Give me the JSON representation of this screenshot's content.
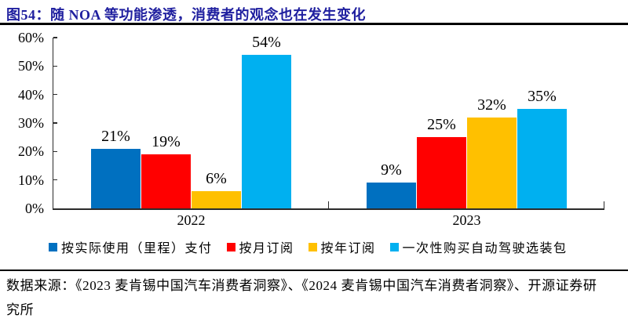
{
  "chart_data": {
    "type": "bar",
    "title": "图54：随 NOA 等功能渗透，消费者的观念也在发生变化",
    "categories": [
      "2022",
      "2023"
    ],
    "series": [
      {
        "name": "按实际使用（里程）支付",
        "color": "#0070C0",
        "values": [
          21,
          9
        ]
      },
      {
        "name": "按月订阅",
        "color": "#FF0000",
        "values": [
          19,
          25
        ]
      },
      {
        "name": "按年订阅",
        "color": "#FFC000",
        "values": [
          6,
          32
        ]
      },
      {
        "name": "一次性购买自动驾驶选装包",
        "color": "#00B0F0",
        "values": [
          54,
          35
        ]
      }
    ],
    "ylim": [
      0,
      60
    ],
    "y_tick_labels": [
      "0%",
      "10%",
      "20%",
      "30%",
      "40%",
      "50%",
      "60%"
    ],
    "data_labels": true,
    "data_label_suffix": "%",
    "legend_position": "bottom",
    "grid": false,
    "xlabel": "",
    "ylabel": ""
  },
  "colors": {
    "title_text": "#1F1F9F",
    "axis_line": "#2B2B2B"
  },
  "footer": {
    "source_line1": "数据来源：《2023 麦肯锡中国汽车消费者洞察》、《2024 麦肯锡中国汽车消费者洞察》、开源证券研",
    "source_line2": "究所"
  }
}
